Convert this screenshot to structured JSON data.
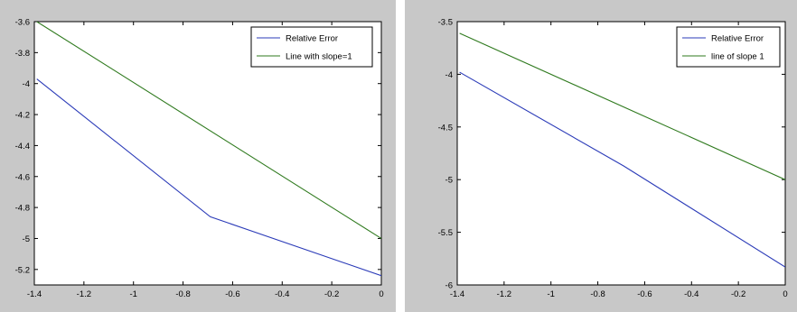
{
  "chart_data": [
    {
      "type": "line",
      "title": "",
      "xlabel": "",
      "ylabel": "",
      "xlim": [
        -1.4,
        0
      ],
      "ylim": [
        -5.3,
        -3.6
      ],
      "x_ticks": [
        -1.4,
        -1.2,
        -1,
        -0.8,
        -0.6,
        -0.4,
        -0.2,
        0
      ],
      "x_tick_labels": [
        "-1.4",
        "-1.2",
        "-1",
        "-0.8",
        "-0.6",
        "-0.4",
        "-0.2",
        "0"
      ],
      "y_ticks": [
        -3.6,
        -3.8,
        -4,
        -4.2,
        -4.4,
        -4.6,
        -4.8,
        -5,
        -5.2
      ],
      "y_tick_labels": [
        "-3.6",
        "-3.8",
        "-4",
        "-4.2",
        "-4.4",
        "-4.6",
        "-4.8",
        "-5",
        "-5.2"
      ],
      "grid": false,
      "legend_position": "top-right",
      "series": [
        {
          "name": "Relative Error",
          "color": "#2b3bb8",
          "x": [
            -1.39,
            -0.69,
            0
          ],
          "y": [
            -3.97,
            -4.86,
            -5.24
          ]
        },
        {
          "name": "Line with slope=1",
          "color": "#2f7a1e",
          "x": [
            -1.39,
            0
          ],
          "y": [
            -3.6,
            -5.0
          ]
        }
      ]
    },
    {
      "type": "line",
      "title": "",
      "xlabel": "",
      "ylabel": "",
      "xlim": [
        -1.4,
        0
      ],
      "ylim": [
        -6,
        -3.5
      ],
      "x_ticks": [
        -1.4,
        -1.2,
        -1,
        -0.8,
        -0.6,
        -0.4,
        -0.2,
        0
      ],
      "x_tick_labels": [
        "-1.4",
        "-1.2",
        "-1",
        "-0.8",
        "-0.6",
        "-0.4",
        "-0.2",
        "0"
      ],
      "y_ticks": [
        -3.5,
        -4,
        -4.5,
        -5,
        -5.5,
        -6
      ],
      "y_tick_labels": [
        "-3.5",
        "-4",
        "-4.5",
        "-5",
        "-5.5",
        "-6"
      ],
      "grid": false,
      "legend_position": "top-right",
      "series": [
        {
          "name": "Relative Error",
          "color": "#2b3bb8",
          "x": [
            -1.39,
            -0.69,
            0
          ],
          "y": [
            -3.98,
            -4.87,
            -5.83
          ]
        },
        {
          "name": "line of slope 1",
          "color": "#2f7a1e",
          "x": [
            -1.39,
            0
          ],
          "y": [
            -3.61,
            -5.0
          ]
        }
      ]
    }
  ]
}
